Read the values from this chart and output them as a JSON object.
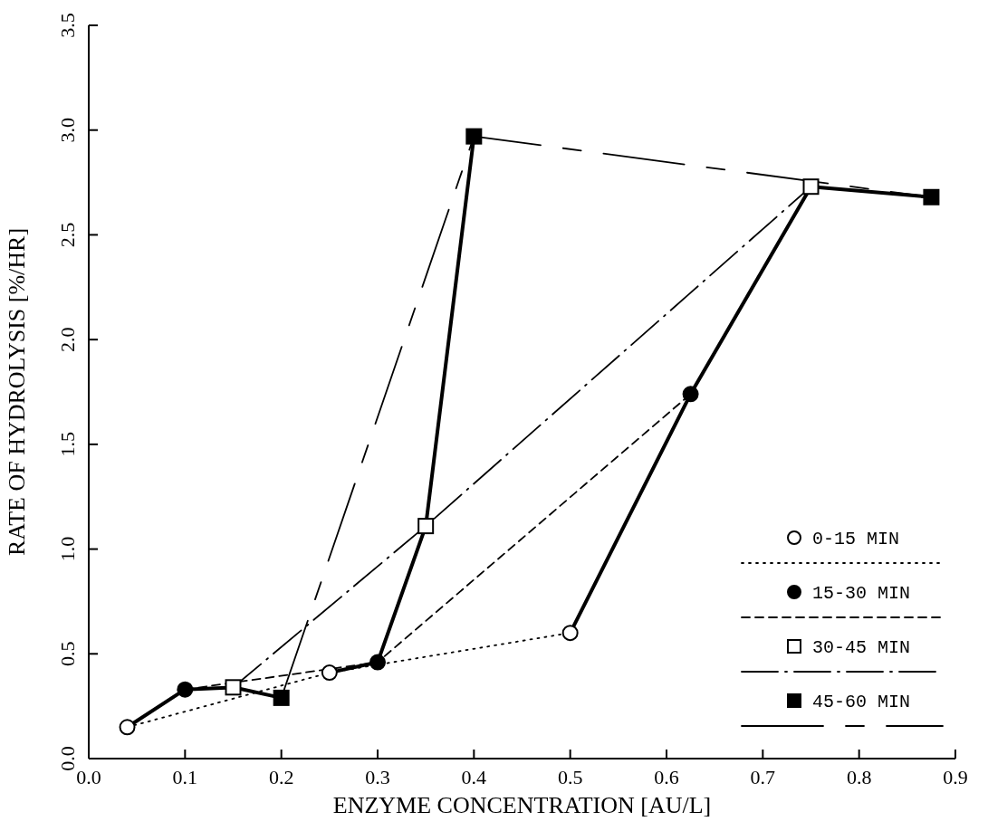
{
  "chart_data": {
    "type": "line",
    "xlabel": "ENZYME CONCENTRATION [AU/L]",
    "ylabel": "RATE OF HYDROLYSIS [%/HR]",
    "xlim": [
      0,
      0.9
    ],
    "xticks": [
      {
        "value": 0,
        "label": "0.0"
      },
      0.1,
      0.2,
      0.3,
      0.4,
      0.5,
      0.6,
      0.7,
      0.8,
      0.9
    ],
    "ylim": [
      0,
      3.5
    ],
    "yticks": [
      {
        "value": 0,
        "label": "0.0"
      },
      0.5,
      {
        "value": 1,
        "label": "1.0"
      },
      1.5,
      {
        "value": 2,
        "label": "2.0"
      },
      2.5,
      {
        "value": 3,
        "label": "3.0"
      },
      3.5
    ],
    "grid": false,
    "legend": "bottom right",
    "series": [
      {
        "name": "0-15 MIN",
        "color": "#000000",
        "marker": "circle",
        "colors": [
          "#ffffff",
          "#ffffff",
          "#ffffff"
        ],
        "line_style": "dotted",
        "x": [
          0.04,
          0.25,
          0.5
        ],
        "values": [
          0.15,
          0.41,
          0.6
        ]
      },
      {
        "name": "15-30 MIN",
        "color": "#000000",
        "marker": "circle",
        "colors": [
          "#000000",
          "#000000",
          "#000000"
        ],
        "line_style": "dashed",
        "x": [
          0.1,
          0.3,
          0.625
        ],
        "values": [
          0.33,
          0.46,
          1.74
        ]
      },
      {
        "name": "30-45 MIN",
        "color": "#000000",
        "marker": "square",
        "colors": [
          "#ffffff",
          "#ffffff",
          "#ffffff"
        ],
        "line_style": "dashdot",
        "x": [
          0.15,
          0.35,
          0.75
        ],
        "values": [
          0.34,
          1.11,
          2.73
        ]
      },
      {
        "name": "45-60 MIN",
        "color": "#000000",
        "marker": "square",
        "colors": [
          "#000000",
          "#000000",
          "#000000"
        ],
        "line_style": "longdash",
        "x": [
          0.2,
          0.4,
          0.875
        ],
        "values": [
          0.29,
          2.97,
          2.68
        ]
      },
      {
        "color": "#000000",
        "marker": "none",
        "line_style": "solid",
        "x": [
          0.04,
          0.1,
          0.15,
          0.2
        ],
        "values": [
          0.15,
          0.33,
          0.34,
          0.29
        ]
      },
      {
        "color": "#000000",
        "marker": "none",
        "line_style": "solid",
        "x": [
          0.25,
          0.3,
          0.35,
          0.4
        ],
        "values": [
          0.41,
          0.46,
          1.11,
          2.97
        ]
      },
      {
        "color": "#000000",
        "marker": "none",
        "line_style": "solid",
        "x": [
          0.5,
          0.625,
          0.75,
          0.875
        ],
        "values": [
          0.6,
          1.74,
          2.73,
          2.68
        ]
      }
    ]
  }
}
